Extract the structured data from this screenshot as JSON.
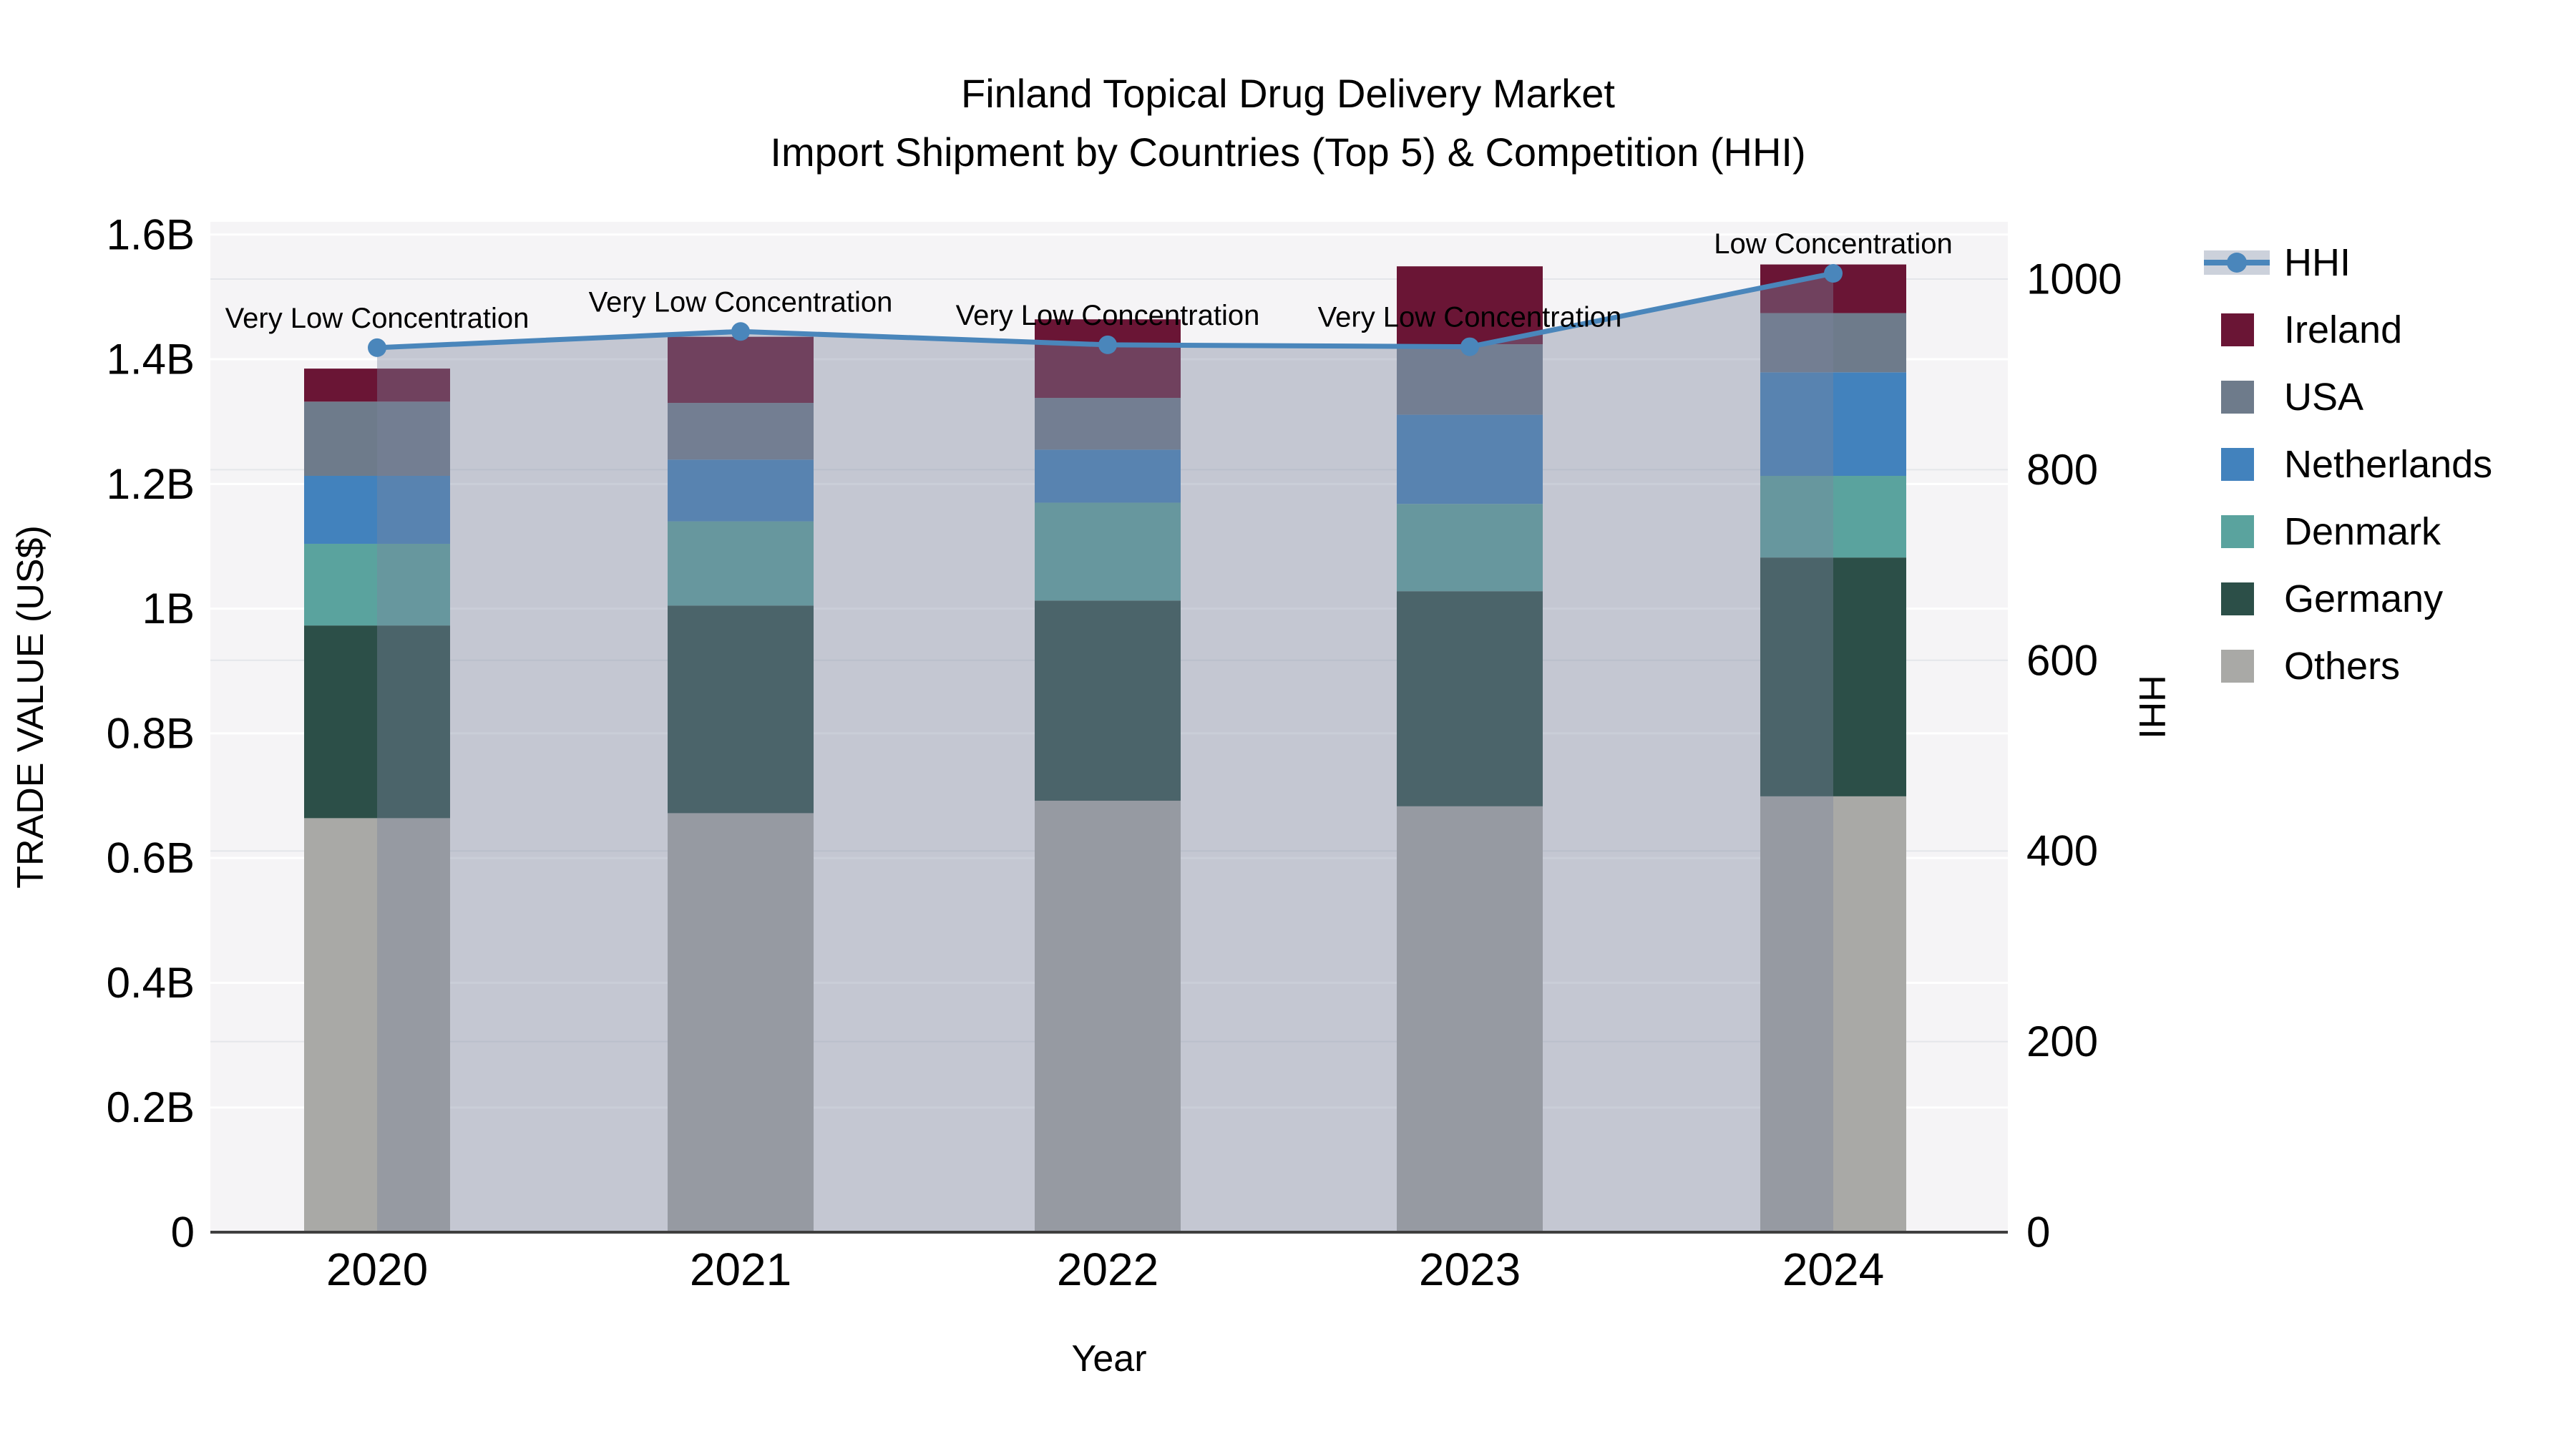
{
  "title": {
    "line1": "Finland Topical Drug Delivery Market",
    "line2": "Import Shipment by Countries (Top 5) & Competition (HHI)"
  },
  "axes": {
    "y_left": {
      "title": "TRADE VALUE (US$)",
      "tick_labels": [
        "0",
        "0.2B",
        "0.4B",
        "0.6B",
        "0.8B",
        "1B",
        "1.2B",
        "1.4B",
        "1.6B"
      ],
      "range": [
        0,
        1.6
      ],
      "unit": "billion USD"
    },
    "y_right": {
      "title": "HHI",
      "tick_labels": [
        "0",
        "200",
        "400",
        "600",
        "800",
        "1000"
      ],
      "range": [
        0,
        1060
      ]
    },
    "x": {
      "title": "Year",
      "tick_labels": [
        "2020",
        "2021",
        "2022",
        "2023",
        "2024"
      ]
    }
  },
  "legend": {
    "items": [
      {
        "label": "HHI",
        "type": "line",
        "color": "#4a86bb"
      },
      {
        "label": "Ireland",
        "type": "swatch",
        "color": "#6a1535"
      },
      {
        "label": "USA",
        "type": "swatch",
        "color": "#6e7b8b"
      },
      {
        "label": "Netherlands",
        "type": "swatch",
        "color": "#4282bd"
      },
      {
        "label": "Denmark",
        "type": "swatch",
        "color": "#5aa39e"
      },
      {
        "label": "Germany",
        "type": "swatch",
        "color": "#2c4f48"
      },
      {
        "label": "Others",
        "type": "swatch",
        "color": "#a9a9a6"
      }
    ]
  },
  "colors": {
    "panel": "#f5f4f6",
    "grid_left": "#ffffff",
    "grid_right": "#e4e6ea",
    "spine": "#3f3f3f",
    "hhi_line": "#4a86bb",
    "hhi_area_fill": "rgba(122,132,158,0.40)",
    "text": "#000000"
  },
  "chart_data": {
    "type": "bar",
    "subtype": "stacked-bars-with-dual-axis-line",
    "title": "Finland Topical Drug Delivery Market — Import Shipment by Countries (Top 5) & Competition (HHI)",
    "xlabel": "Year",
    "ylabel_left": "TRADE VALUE (US$)",
    "ylabel_right": "HHI",
    "categories": [
      "2020",
      "2021",
      "2022",
      "2023",
      "2024"
    ],
    "stack_order_bottom_to_top": [
      "Others",
      "Germany",
      "Denmark",
      "Netherlands",
      "USA",
      "Ireland"
    ],
    "series": [
      {
        "name": "Ireland",
        "color": "#6a1535",
        "values_billion": [
          0.053,
          0.106,
          0.126,
          0.125,
          0.078
        ]
      },
      {
        "name": "USA",
        "color": "#6e7b8b",
        "values_billion": [
          0.119,
          0.091,
          0.083,
          0.113,
          0.095
        ]
      },
      {
        "name": "Netherlands",
        "color": "#4282bd",
        "values_billion": [
          0.109,
          0.099,
          0.085,
          0.143,
          0.166
        ]
      },
      {
        "name": "Denmark",
        "color": "#5aa39e",
        "values_billion": [
          0.131,
          0.135,
          0.157,
          0.14,
          0.131
        ]
      },
      {
        "name": "Germany",
        "color": "#2c4f48",
        "values_billion": [
          0.309,
          0.333,
          0.321,
          0.345,
          0.383
        ]
      },
      {
        "name": "Others",
        "color": "#a9a9a6",
        "values_billion": [
          0.664,
          0.672,
          0.692,
          0.683,
          0.699
        ]
      }
    ],
    "bar_totals_billion": [
      1.385,
      1.436,
      1.464,
      1.549,
      1.552
    ],
    "line_series": {
      "name": "HHI",
      "axis": "right",
      "values": [
        928,
        945,
        931,
        929,
        1006
      ]
    },
    "annotations": [
      {
        "x": "2020",
        "text": "Very Low Concentration"
      },
      {
        "x": "2021",
        "text": "Very Low Concentration"
      },
      {
        "x": "2022",
        "text": "Very Low Concentration"
      },
      {
        "x": "2023",
        "text": "Very Low Concentration"
      },
      {
        "x": "2024",
        "text": "Low Concentration"
      }
    ],
    "ylim_left": [
      0,
      1.6
    ],
    "ylim_right": [
      0,
      1060
    ],
    "grid": true,
    "legend_position": "right"
  }
}
